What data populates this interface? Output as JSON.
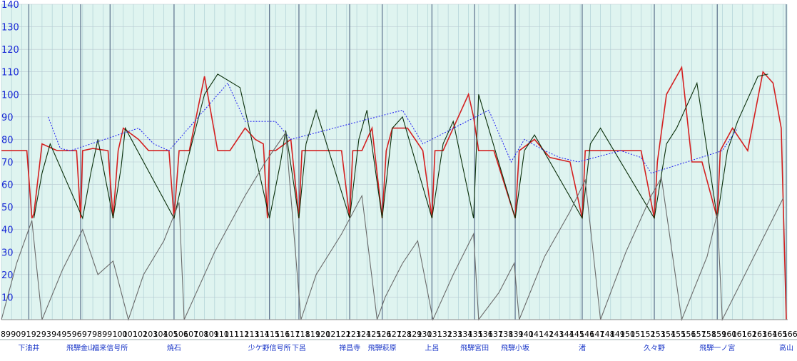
{
  "chart_data": {
    "type": "line",
    "title": "",
    "xlabel": "",
    "ylabel": "",
    "ylim": [
      0,
      140
    ],
    "xlim": [
      89,
      166.3
    ],
    "yticks": [
      10,
      20,
      30,
      40,
      50,
      60,
      70,
      80,
      90,
      100,
      110,
      120,
      130,
      140
    ],
    "xticks": [
      89,
      90,
      91,
      92,
      93,
      94,
      95,
      96,
      97,
      98,
      99,
      100,
      101,
      102,
      103,
      104,
      105,
      106,
      107,
      108,
      109,
      110,
      111,
      112,
      113,
      114,
      115,
      116,
      117,
      118,
      119,
      120,
      121,
      122,
      123,
      124,
      125,
      126,
      127,
      128,
      129,
      130,
      131,
      132,
      133,
      134,
      135,
      136,
      137,
      138,
      139,
      140,
      141,
      142,
      143,
      144,
      145,
      146,
      147,
      148,
      149,
      150,
      151,
      152,
      153,
      154,
      155,
      156,
      157,
      158,
      159,
      160,
      161,
      162,
      163,
      164,
      165,
      166
    ],
    "grid": true,
    "stations": [
      {
        "name": "下油井",
        "x": 91.7
      },
      {
        "name": "飛騨金山",
        "x": 96.8
      },
      {
        "name": "福来信号所",
        "x": 99.7
      },
      {
        "name": "焼石",
        "x": 106.0
      },
      {
        "name": "少ケ野信号所",
        "x": 115.4
      },
      {
        "name": "下呂",
        "x": 118.3
      },
      {
        "name": "禅昌寺",
        "x": 123.3
      },
      {
        "name": "飛騨萩原",
        "x": 126.5
      },
      {
        "name": "上呂",
        "x": 131.4
      },
      {
        "name": "飛騨宮田",
        "x": 135.6
      },
      {
        "name": "飛騨小坂",
        "x": 139.6
      },
      {
        "name": "渚",
        "x": 146.2
      },
      {
        "name": "久々野",
        "x": 153.3
      },
      {
        "name": "飛騨一ノ宮",
        "x": 159.5
      },
      {
        "name": "高山",
        "x": 166.3
      }
    ],
    "series": [
      {
        "name": "",
        "color": "#d42020",
        "x": [
          89.0,
          90.5,
          91.5,
          92.0,
          92.2,
          93.0,
          94.5,
          95.5,
          96.4,
          96.8,
          97.0,
          98.0,
          99.5,
          100.0,
          100.5,
          101.0,
          102.5,
          103.5,
          104.5,
          105.5,
          106.0,
          106.5,
          107.5,
          109.0,
          110.3,
          111.5,
          113.0,
          114.0,
          114.8,
          115.2,
          115.4,
          116.0,
          117.5,
          118.3,
          118.6,
          119.5,
          121.5,
          122.5,
          123.3,
          123.6,
          124.5,
          125.5,
          126.5,
          126.9,
          127.5,
          129.0,
          130.5,
          131.4,
          131.7,
          132.5,
          133.5,
          135.0,
          135.5,
          136.0,
          137.5,
          139.6,
          140.0,
          141.5,
          143.0,
          145.0,
          146.2,
          146.5,
          148.0,
          150.0,
          152.0,
          153.3,
          153.6,
          154.5,
          156.0,
          157.0,
          158.0,
          159.5,
          159.8,
          161.0,
          162.5,
          164.0,
          165.0,
          165.8,
          166.3
        ],
        "values": [
          75,
          75,
          75,
          45,
          47,
          78,
          75,
          75,
          75,
          45,
          75,
          76,
          75,
          45,
          75,
          85,
          80,
          75,
          75,
          75,
          45,
          75,
          75,
          108,
          75,
          75,
          85,
          80,
          78,
          45,
          75,
          75,
          80,
          45,
          75,
          75,
          75,
          75,
          45,
          75,
          75,
          85,
          45,
          75,
          85,
          85,
          75,
          45,
          75,
          75,
          85,
          100,
          90,
          75,
          75,
          45,
          75,
          80,
          72,
          70,
          45,
          75,
          75,
          75,
          75,
          45,
          70,
          100,
          112,
          70,
          70,
          45,
          75,
          85,
          75,
          110,
          105,
          85,
          0
        ]
      },
      {
        "name": "",
        "color": "#0a2f0a",
        "x": [
          92.2,
          93.0,
          93.8,
          97.0,
          97.8,
          98.5,
          100.0,
          100.8,
          101.2,
          106.0,
          107.0,
          109.0,
          110.3,
          112.5,
          115.4,
          116.5,
          117.0,
          118.3,
          119.0,
          120.0,
          123.3,
          124.2,
          125.0,
          126.5,
          127.5,
          128.5,
          131.4,
          132.5,
          133.5,
          135.5,
          136.0,
          139.6,
          140.5,
          141.5,
          146.2,
          147.0,
          148.0,
          153.3,
          154.5,
          155.5,
          157.5,
          159.5,
          160.5,
          161.5,
          163.5,
          164.5
        ],
        "values": [
          45,
          65,
          78,
          45,
          65,
          80,
          45,
          68,
          85,
          45,
          65,
          100,
          109,
          103,
          45,
          70,
          84,
          45,
          78,
          93,
          45,
          80,
          93,
          45,
          85,
          90,
          45,
          78,
          88,
          45,
          100,
          45,
          75,
          82,
          45,
          78,
          85,
          45,
          78,
          85,
          105,
          45,
          75,
          88,
          108,
          109
        ]
      },
      {
        "name": "",
        "color": "#2a2af0",
        "x": [
          93.6,
          94.8,
          95.8,
          102.5,
          104.0,
          105.5,
          111.3,
          113.0,
          116.0,
          117.5,
          128.5,
          130.5,
          137.0,
          139.2,
          140.5,
          142.5,
          144.0,
          145.8,
          150.0,
          152.0,
          153.0,
          160.0,
          161.5
        ],
        "values": [
          90,
          76,
          75,
          85,
          78,
          75,
          105,
          88,
          88,
          80,
          93,
          78,
          93,
          70,
          80,
          75,
          72,
          70,
          75,
          72,
          65,
          75,
          85
        ]
      },
      {
        "name": "",
        "color": "#6a6a6a",
        "x": [
          89.0,
          90.5,
          92.0,
          93.0,
          95.0,
          97.0,
          98.5,
          100.0,
          101.5,
          103.0,
          105.0,
          106.5,
          107.0,
          110.0,
          113.0,
          115.0,
          117.0,
          118.5,
          120.0,
          122.5,
          124.5,
          126.0,
          126.8,
          128.5,
          130.0,
          131.5,
          133.5,
          135.5,
          136.0,
          138.0,
          139.5,
          140.0,
          142.5,
          145.0,
          146.5,
          148.0,
          150.5,
          153.0,
          154.0,
          156.0,
          158.5,
          159.5,
          160.0,
          162.0,
          164.0,
          166.0
        ],
        "values": [
          0,
          25,
          44,
          0,
          22,
          40,
          20,
          26,
          0,
          20,
          35,
          52,
          0,
          30,
          55,
          70,
          83,
          0,
          20,
          38,
          55,
          0,
          10,
          25,
          35,
          0,
          20,
          38,
          0,
          12,
          25,
          0,
          28,
          48,
          62,
          0,
          30,
          55,
          63,
          0,
          28,
          47,
          0,
          18,
          36,
          54
        ]
      }
    ]
  }
}
